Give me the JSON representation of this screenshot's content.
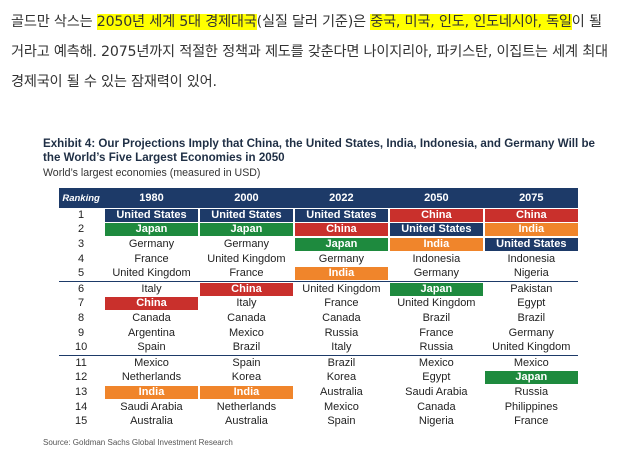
{
  "paragraph": {
    "p1": "골드만 삭스는 ",
    "h1": "2050년 세계 5대 경제대국",
    "p2": "(실질 달러 기준)은 ",
    "h2": "중국, 미국, 인도, 인도네시아, 독일",
    "p3": "이 될 거라고 예측해. 2075년까지 적절한 정책과 제도를 갖춘다면 나이지리아, 파키스탄, 이집트는 세계 최대 경제국이 될 수 있는 잠재력이 있어."
  },
  "exhibit": {
    "title": "Exhibit 4: Our Projections Imply that China, the United States, India, Indonesia, and Germany Will be the World’s Five Largest Economies in 2050",
    "subtitle": "World’s largest economies (measured in USD)",
    "source": "Source: Goldman Sachs Global Investment Research"
  },
  "table": {
    "ranking_label": "Ranking",
    "years": [
      "1980",
      "2000",
      "2022",
      "2050",
      "2075"
    ],
    "rows": [
      {
        "rank": "1",
        "cells": [
          [
            "United States",
            "navy"
          ],
          [
            "United States",
            "navy"
          ],
          [
            "United States",
            "navy"
          ],
          [
            "China",
            "red"
          ],
          [
            "China",
            "red"
          ]
        ]
      },
      {
        "rank": "2",
        "cells": [
          [
            "Japan",
            "green"
          ],
          [
            "Japan",
            "green"
          ],
          [
            "China",
            "red"
          ],
          [
            "United States",
            "navy"
          ],
          [
            "India",
            "orange"
          ]
        ]
      },
      {
        "rank": "3",
        "cells": [
          [
            "Germany",
            ""
          ],
          [
            "Germany",
            ""
          ],
          [
            "Japan",
            "green"
          ],
          [
            "India",
            "orange"
          ],
          [
            "United States",
            "navy"
          ]
        ]
      },
      {
        "rank": "4",
        "cells": [
          [
            "France",
            ""
          ],
          [
            "United Kingdom",
            ""
          ],
          [
            "Germany",
            ""
          ],
          [
            "Indonesia",
            ""
          ],
          [
            "Indonesia",
            ""
          ]
        ]
      },
      {
        "rank": "5",
        "cells": [
          [
            "United Kingdom",
            ""
          ],
          [
            "France",
            ""
          ],
          [
            "India",
            "orange"
          ],
          [
            "Germany",
            ""
          ],
          [
            "Nigeria",
            ""
          ]
        ]
      },
      {
        "rank": "6",
        "cells": [
          [
            "Italy",
            ""
          ],
          [
            "China",
            "red"
          ],
          [
            "United Kingdom",
            ""
          ],
          [
            "Japan",
            "green"
          ],
          [
            "Pakistan",
            ""
          ]
        ]
      },
      {
        "rank": "7",
        "cells": [
          [
            "China",
            "red"
          ],
          [
            "Italy",
            ""
          ],
          [
            "France",
            ""
          ],
          [
            "United Kingdom",
            ""
          ],
          [
            "Egypt",
            ""
          ]
        ]
      },
      {
        "rank": "8",
        "cells": [
          [
            "Canada",
            ""
          ],
          [
            "Canada",
            ""
          ],
          [
            "Canada",
            ""
          ],
          [
            "Brazil",
            ""
          ],
          [
            "Brazil",
            ""
          ]
        ]
      },
      {
        "rank": "9",
        "cells": [
          [
            "Argentina",
            ""
          ],
          [
            "Mexico",
            ""
          ],
          [
            "Russia",
            ""
          ],
          [
            "France",
            ""
          ],
          [
            "Germany",
            ""
          ]
        ]
      },
      {
        "rank": "10",
        "cells": [
          [
            "Spain",
            ""
          ],
          [
            "Brazil",
            ""
          ],
          [
            "Italy",
            ""
          ],
          [
            "Russia",
            ""
          ],
          [
            "United Kingdom",
            ""
          ]
        ]
      },
      {
        "rank": "11",
        "cells": [
          [
            "Mexico",
            ""
          ],
          [
            "Spain",
            ""
          ],
          [
            "Brazil",
            ""
          ],
          [
            "Mexico",
            ""
          ],
          [
            "Mexico",
            ""
          ]
        ]
      },
      {
        "rank": "12",
        "cells": [
          [
            "Netherlands",
            ""
          ],
          [
            "Korea",
            ""
          ],
          [
            "Korea",
            ""
          ],
          [
            "Egypt",
            ""
          ],
          [
            "Japan",
            "green"
          ]
        ]
      },
      {
        "rank": "13",
        "cells": [
          [
            "India",
            "orange"
          ],
          [
            "India",
            "orange"
          ],
          [
            "Australia",
            ""
          ],
          [
            "Saudi Arabia",
            ""
          ],
          [
            "Russia",
            ""
          ]
        ]
      },
      {
        "rank": "14",
        "cells": [
          [
            "Saudi Arabia",
            ""
          ],
          [
            "Netherlands",
            ""
          ],
          [
            "Mexico",
            ""
          ],
          [
            "Canada",
            ""
          ],
          [
            "Philippines",
            ""
          ]
        ]
      },
      {
        "rank": "15",
        "cells": [
          [
            "Australia",
            ""
          ],
          [
            "Australia",
            ""
          ],
          [
            "Spain",
            ""
          ],
          [
            "Nigeria",
            ""
          ],
          [
            "France",
            ""
          ]
        ]
      }
    ],
    "separators_before_rank": [
      "6",
      "11"
    ]
  },
  "colors": {
    "navy": "#1d3a68",
    "red": "#c9302c",
    "green": "#1e8a3e",
    "orange": "#f0852b",
    "highlight": "#ffff00"
  }
}
